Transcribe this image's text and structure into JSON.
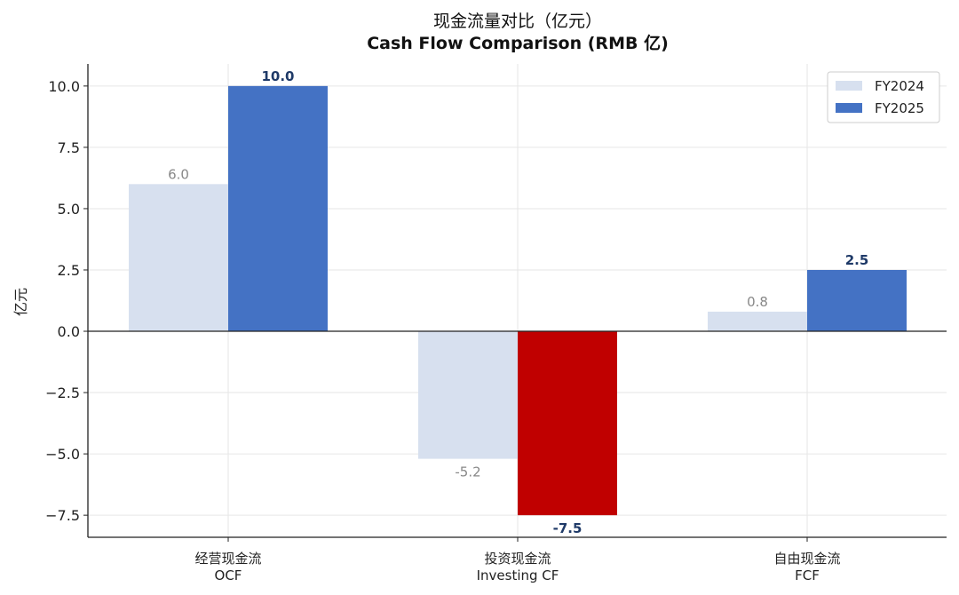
{
  "chart_data": {
    "type": "bar",
    "title": "现金流量对比（亿元）",
    "subtitle": "Cash Flow Comparison (RMB 亿)",
    "ylabel": "亿元",
    "xlabel": "",
    "categories": [
      {
        "zh": "经营现金流",
        "en": "OCF"
      },
      {
        "zh": "投资现金流",
        "en": "Investing CF"
      },
      {
        "zh": "自由现金流",
        "en": "FCF"
      }
    ],
    "series": [
      {
        "name": "FY2024",
        "values": [
          6.0,
          -5.2,
          0.8
        ],
        "color": "#d7e0ef",
        "value_labels": [
          "6.0",
          "-5.2",
          "0.8"
        ]
      },
      {
        "name": "FY2025",
        "values": [
          10.0,
          -7.5,
          2.5
        ],
        "color": "#4472c4",
        "negative_color": "#c00000",
        "value_labels": [
          "10.0",
          "-7.5",
          "2.5"
        ]
      }
    ],
    "ylim": [
      -8.4,
      10.9
    ],
    "yticks": [
      10.0,
      7.5,
      5.0,
      2.5,
      0.0,
      -2.5,
      -5.0,
      -7.5
    ],
    "ytick_labels": [
      "10.0",
      "7.5",
      "5.0",
      "2.5",
      "0.0",
      "−2.5",
      "−5.0",
      "−7.5"
    ],
    "grid": true,
    "legend_position": "top-right"
  }
}
